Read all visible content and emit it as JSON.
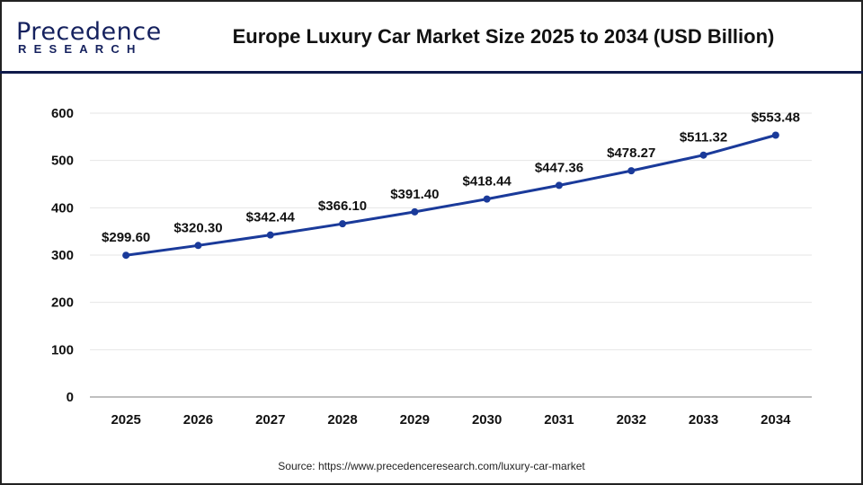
{
  "logo": {
    "text": "Precedence",
    "subtext": "RESEARCH"
  },
  "title": "Europe Luxury Car Market Size 2025 to 2034 (USD Billion)",
  "source": "Source: https://www.precedenceresearch.com/luxury-car-market",
  "colors": {
    "line": "#1a3a9a",
    "header_rule": "#0f1a4a",
    "grid": "#e6e6e6",
    "axis": "#bfbfbf"
  },
  "chart_data": {
    "type": "line",
    "title": "Europe Luxury Car Market Size 2025 to 2034 (USD Billion)",
    "xlabel": "",
    "ylabel": "",
    "categories": [
      "2025",
      "2026",
      "2027",
      "2028",
      "2029",
      "2030",
      "2031",
      "2032",
      "2033",
      "2034"
    ],
    "values": [
      299.6,
      320.3,
      342.44,
      366.1,
      391.4,
      418.44,
      447.36,
      478.27,
      511.32,
      553.48
    ],
    "data_labels": [
      "$299.60",
      "$320.30",
      "$342.44",
      "$366.10",
      "$391.40",
      "$418.44",
      "$447.36",
      "$478.27",
      "$511.32",
      "$553.48"
    ],
    "ylim": [
      0,
      600
    ],
    "yticks": [
      0,
      100,
      200,
      300,
      400,
      500,
      600
    ],
    "grid": true,
    "legend": "none"
  }
}
